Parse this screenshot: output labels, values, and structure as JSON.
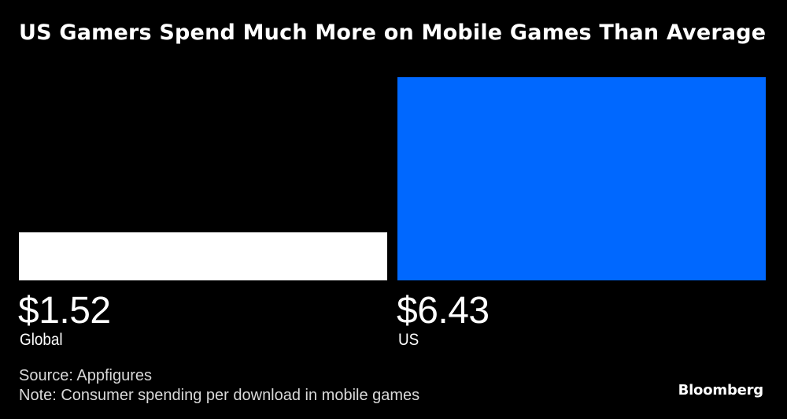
{
  "chart_data": {
    "type": "bar",
    "title": "US Gamers Spend Much More on Mobile Games Than Average",
    "categories": [
      "Global",
      "US"
    ],
    "values": [
      1.52,
      6.43
    ],
    "value_labels": [
      "$1.52",
      "$6.43"
    ],
    "colors": [
      "#ffffff",
      "#0068ff"
    ],
    "xlabel": "",
    "ylabel": "",
    "ylim": [
      0,
      6.43
    ],
    "grid": false
  },
  "footer": {
    "source": "Source: Appfigures",
    "note": "Note: Consumer spending per download in mobile games"
  },
  "brand": "Bloomberg"
}
